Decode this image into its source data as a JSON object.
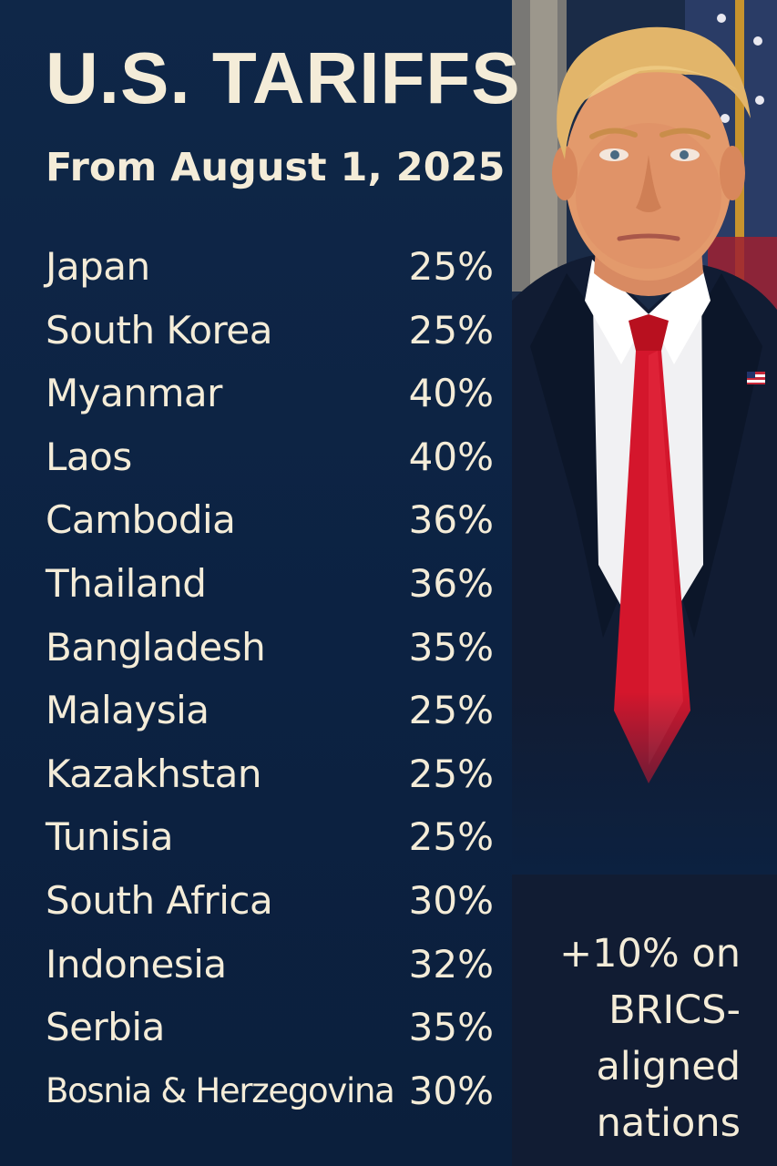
{
  "header": {
    "title": "U.S. TARIFFS",
    "subtitle": "From August 1, 2025"
  },
  "tariffs": [
    {
      "country": "Japan",
      "rate": "25%"
    },
    {
      "country": "South Korea",
      "rate": "25%"
    },
    {
      "country": "Myanmar",
      "rate": "40%"
    },
    {
      "country": "Laos",
      "rate": "40%"
    },
    {
      "country": "Cambodia",
      "rate": "36%"
    },
    {
      "country": "Thailand",
      "rate": "36%"
    },
    {
      "country": "Bangladesh",
      "rate": "35%"
    },
    {
      "country": "Malaysia",
      "rate": "25%"
    },
    {
      "country": "Kazakhstan",
      "rate": "25%"
    },
    {
      "country": "Tunisia",
      "rate": "25%"
    },
    {
      "country": "South Africa",
      "rate": "30%"
    },
    {
      "country": "Indonesia",
      "rate": "32%"
    },
    {
      "country": "Serbia",
      "rate": "35%"
    },
    {
      "country": "Bosnia & Herzegovina",
      "rate": "30%"
    }
  ],
  "note": {
    "line1": "+10% on",
    "line2": "BRICS-",
    "line3": "aligned",
    "line4": "nations"
  },
  "colors": {
    "background": "#0d2240",
    "text": "#f4ecd8",
    "tie": "#d4162c",
    "suit": "#111c33"
  }
}
